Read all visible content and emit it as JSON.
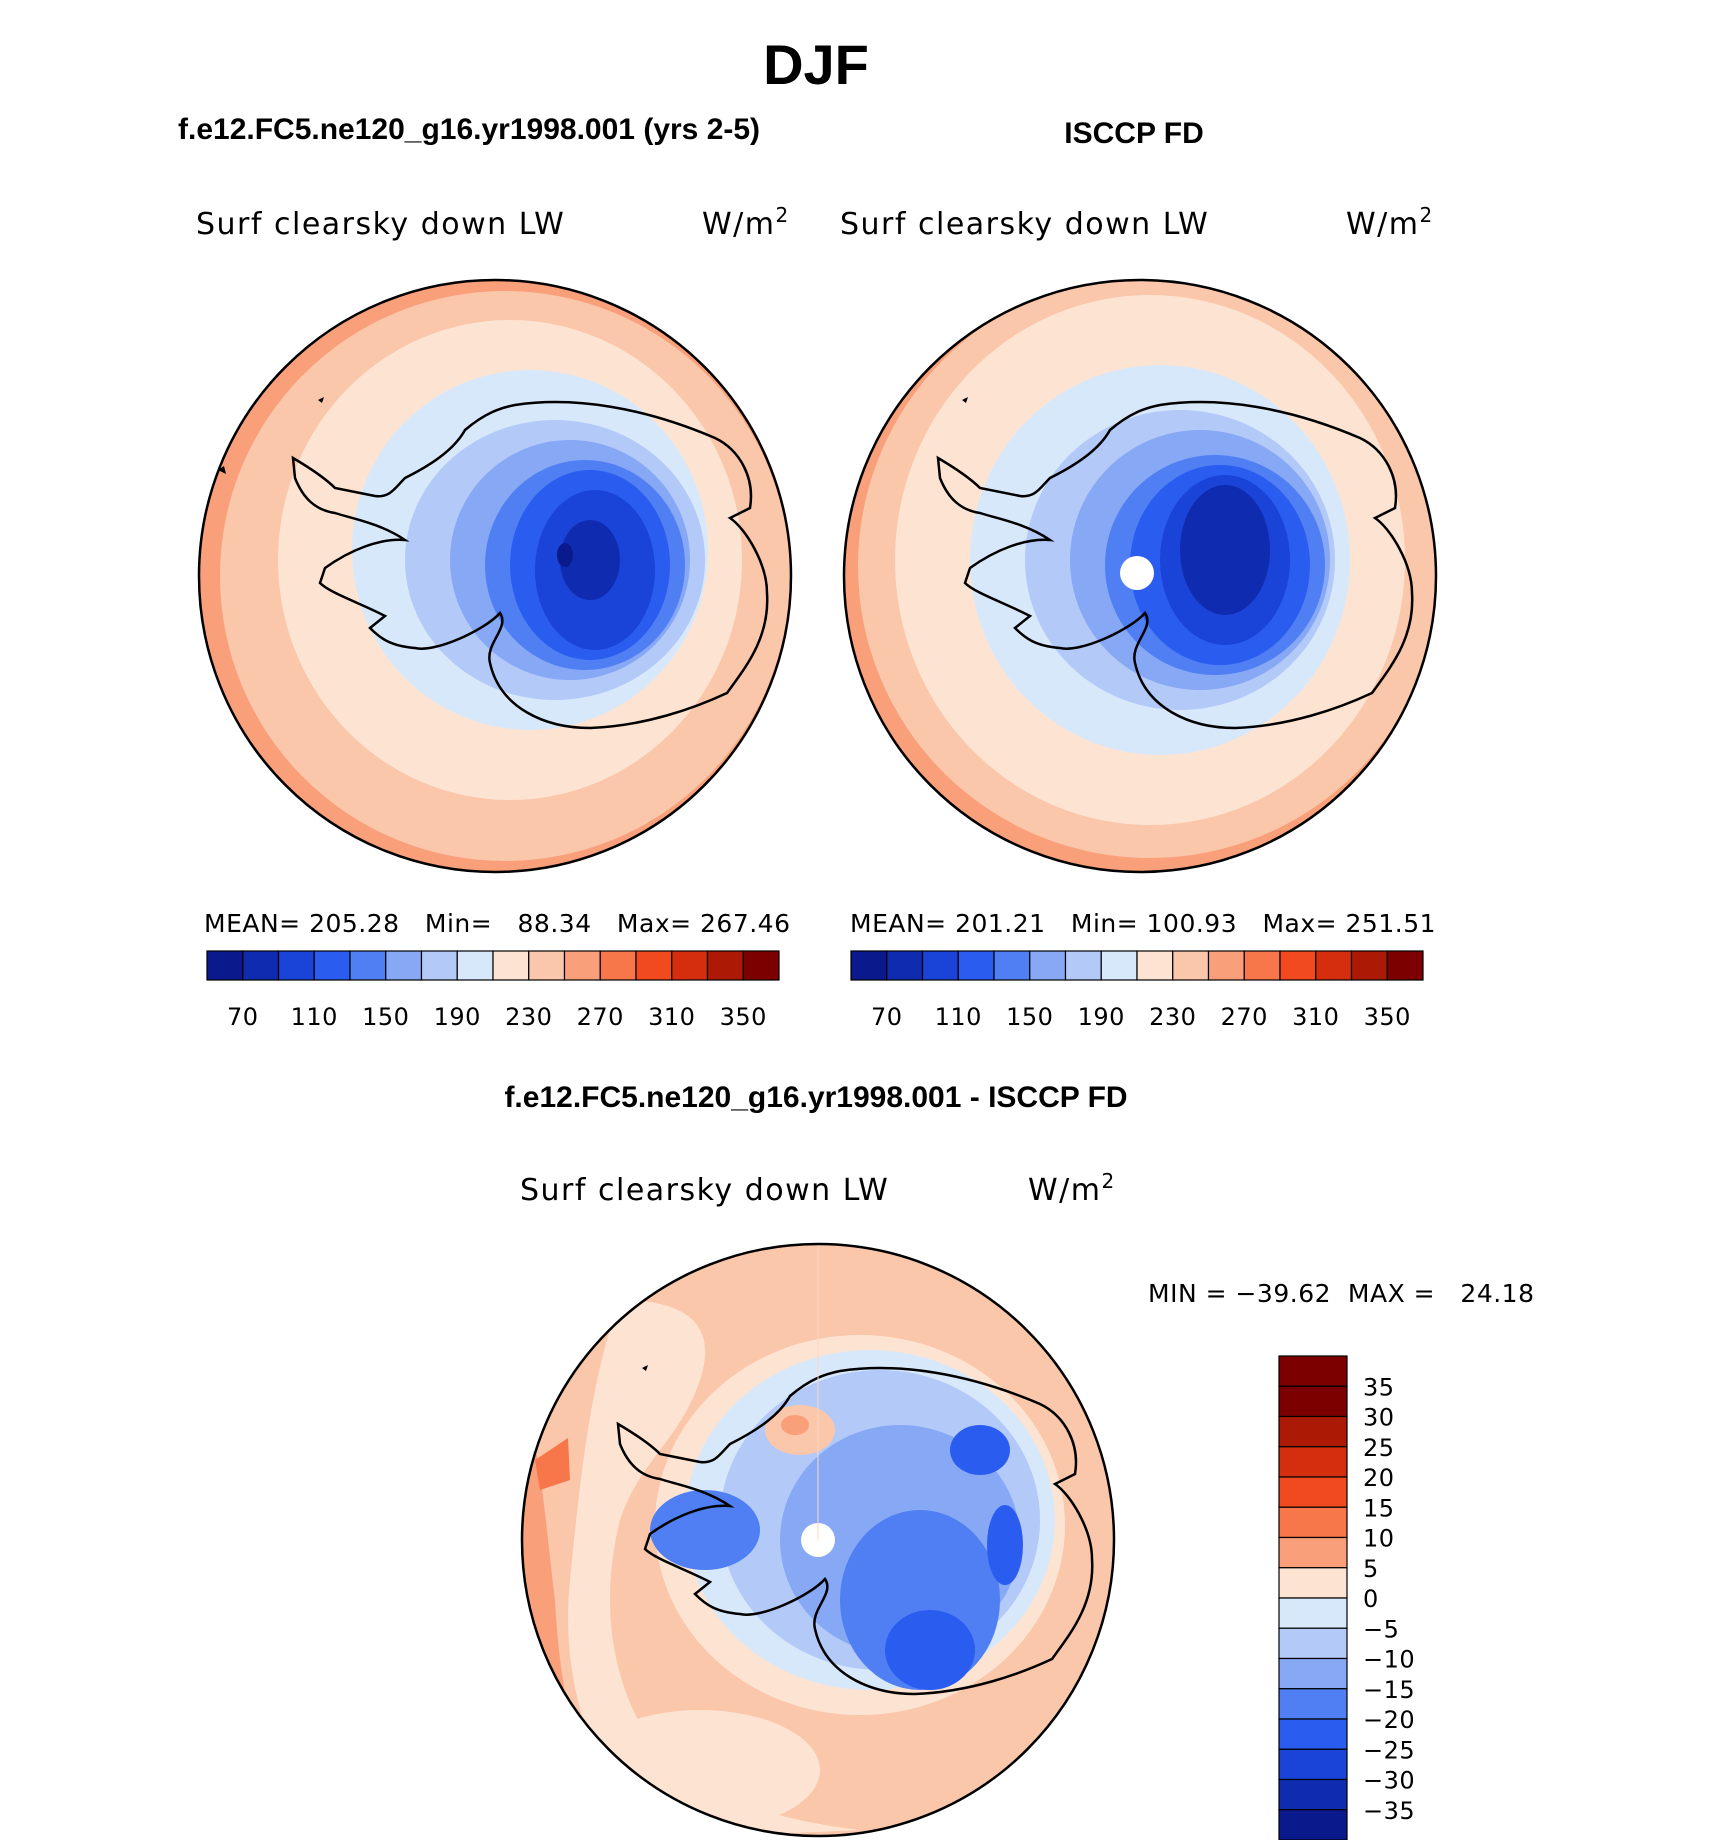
{
  "page": {
    "title": "DJF",
    "panel_a_title": "f.e12.FC5.ne120_g16.yr1998.001 (yrs 2-5)",
    "panel_b_title": "ISCCP FD",
    "diff_title": "f.e12.FC5.ne120_g16.yr1998.001 - ISCCP FD"
  },
  "panels": [
    {
      "variable": "Surf clearsky down LW",
      "units": "W/m",
      "units_exp": "2",
      "stats": "MEAN= 205.28   Min=   88.34   Max= 267.46"
    },
    {
      "variable": "Surf clearsky down LW",
      "units": "W/m",
      "units_exp": "2",
      "stats": "MEAN= 201.21   Min= 100.93   Max= 251.51"
    }
  ],
  "diff_panel": {
    "variable": "Surf clearsky down LW",
    "units": "W/m",
    "units_exp": "2",
    "stats": "MIN = −39.62  MAX =   24.18"
  },
  "colorbar_abs": {
    "colors": [
      "#0a1a8c",
      "#0f2cb0",
      "#1a43d8",
      "#2a5cf0",
      "#4f7ff2",
      "#86a8f5",
      "#b3c9f8",
      "#d8e8fb",
      "#fde4d2",
      "#fbc7ab",
      "#f9a07a",
      "#f7764a",
      "#f24a1f",
      "#d52e0e",
      "#ac1a05",
      "#7d0000"
    ],
    "tick_labels": [
      "70",
      "110",
      "150",
      "190",
      "230",
      "270",
      "310",
      "350"
    ]
  },
  "colorbar_diff": {
    "colors": [
      "#7d0000",
      "#ac1a05",
      "#d52e0e",
      "#f24a1f",
      "#f7764a",
      "#f9a07a",
      "#fde4d2",
      "#d8e8fb",
      "#b3c9f8",
      "#86a8f5",
      "#4f7ff2",
      "#2a5cf0",
      "#1a43d8",
      "#0f2cb0",
      "#0a1a8c"
    ],
    "tick_labels": [
      "35",
      "30",
      "25",
      "20",
      "15",
      "10",
      "5",
      "0",
      "−5",
      "−10",
      "−15",
      "−20",
      "−25",
      "−30",
      "−35"
    ]
  }
}
